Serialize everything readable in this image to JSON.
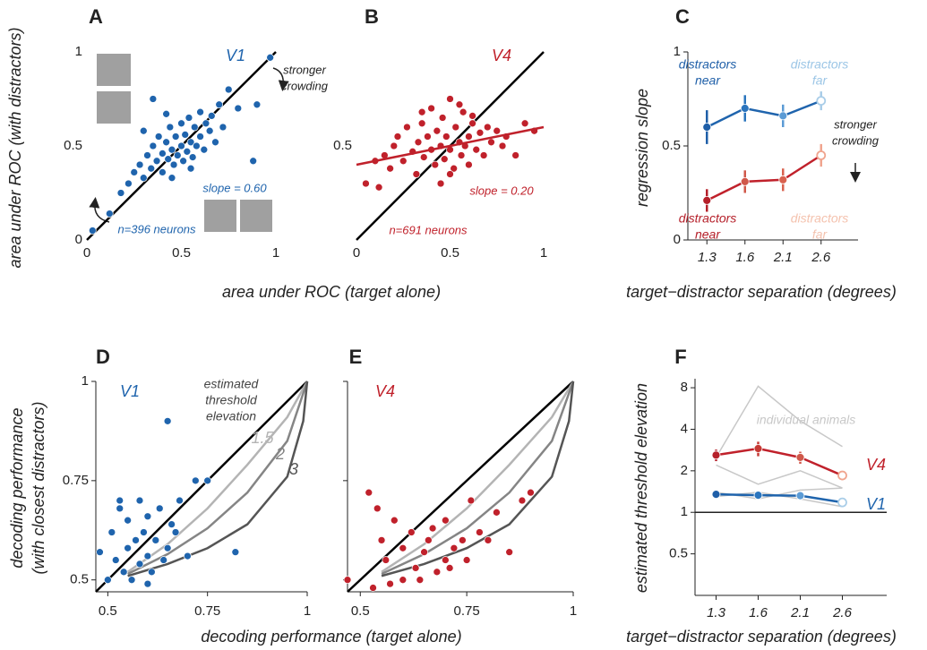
{
  "chart_data": [
    {
      "type": "scatter",
      "panel": "A",
      "label": "V1",
      "color": "#1f64ad",
      "x": [
        0.03,
        0.12,
        0.18,
        0.22,
        0.25,
        0.28,
        0.3,
        0.32,
        0.34,
        0.35,
        0.37,
        0.38,
        0.4,
        0.4,
        0.42,
        0.43,
        0.44,
        0.45,
        0.46,
        0.47,
        0.48,
        0.5,
        0.5,
        0.51,
        0.52,
        0.53,
        0.54,
        0.55,
        0.56,
        0.57,
        0.58,
        0.6,
        0.6,
        0.62,
        0.63,
        0.65,
        0.66,
        0.68,
        0.7,
        0.72,
        0.75,
        0.8,
        0.88,
        0.9,
        0.97,
        0.35,
        0.45,
        0.55,
        0.3,
        0.42
      ],
      "y": [
        0.05,
        0.14,
        0.25,
        0.3,
        0.36,
        0.4,
        0.33,
        0.45,
        0.38,
        0.5,
        0.42,
        0.55,
        0.46,
        0.36,
        0.52,
        0.43,
        0.6,
        0.48,
        0.4,
        0.55,
        0.45,
        0.5,
        0.62,
        0.42,
        0.56,
        0.47,
        0.65,
        0.52,
        0.44,
        0.6,
        0.5,
        0.55,
        0.68,
        0.48,
        0.62,
        0.58,
        0.66,
        0.52,
        0.72,
        0.6,
        0.8,
        0.7,
        0.42,
        0.72,
        0.97,
        0.75,
        0.33,
        0.38,
        0.58,
        0.67
      ],
      "xlim": [
        0,
        1
      ],
      "ylim": [
        0,
        1
      ],
      "xticks": [
        0,
        0.5,
        1
      ],
      "yticks": [
        0,
        0.5,
        1
      ],
      "diagonal": true,
      "xlabel": "area under ROC (target alone)",
      "ylabel": "area under ROC (with distractors)",
      "annotations": [
        "slope = 0.60",
        "n=396 neurons"
      ],
      "note_lines": [
        "stronger",
        "crowding"
      ]
    },
    {
      "type": "scatter",
      "panel": "B",
      "label": "V4",
      "color": "#c0212b",
      "x": [
        0.05,
        0.1,
        0.12,
        0.15,
        0.18,
        0.2,
        0.22,
        0.25,
        0.27,
        0.3,
        0.32,
        0.33,
        0.35,
        0.36,
        0.38,
        0.4,
        0.4,
        0.42,
        0.43,
        0.45,
        0.46,
        0.47,
        0.48,
        0.5,
        0.5,
        0.52,
        0.53,
        0.55,
        0.56,
        0.57,
        0.58,
        0.6,
        0.6,
        0.62,
        0.64,
        0.66,
        0.68,
        0.7,
        0.72,
        0.75,
        0.78,
        0.8,
        0.85,
        0.9,
        0.95,
        0.45,
        0.55,
        0.35,
        0.5,
        0.62
      ],
      "y": [
        0.3,
        0.42,
        0.28,
        0.45,
        0.38,
        0.5,
        0.55,
        0.42,
        0.6,
        0.47,
        0.35,
        0.52,
        0.62,
        0.44,
        0.55,
        0.48,
        0.7,
        0.4,
        0.58,
        0.5,
        0.65,
        0.43,
        0.55,
        0.48,
        0.75,
        0.38,
        0.6,
        0.52,
        0.45,
        0.68,
        0.5,
        0.55,
        0.4,
        0.62,
        0.48,
        0.57,
        0.45,
        0.6,
        0.52,
        0.58,
        0.5,
        0.55,
        0.45,
        0.62,
        0.58,
        0.3,
        0.72,
        0.68,
        0.35,
        0.66
      ],
      "fit": {
        "x": [
          0,
          1
        ],
        "y": [
          0.4,
          0.6
        ]
      },
      "xlim": [
        0,
        1
      ],
      "ylim": [
        0,
        1
      ],
      "xticks": [
        0,
        0.5,
        1
      ],
      "yticks": [
        0.5
      ],
      "diagonal": true,
      "annotations": [
        "slope = 0.20",
        "n=691 neurons"
      ]
    },
    {
      "type": "line",
      "panel": "C",
      "categories": [
        "1.3",
        "1.6",
        "2.1",
        "2.6"
      ],
      "series": [
        {
          "color": "#1f64ad",
          "point_colors": [
            "#1f5fa8",
            "#2a74bd",
            "#5b9bd5",
            "#a9cde8"
          ],
          "values": [
            0.6,
            0.7,
            0.66,
            0.74
          ],
          "errors": [
            0.09,
            0.07,
            0.06,
            0.05
          ]
        },
        {
          "color": "#c0212b",
          "point_colors": [
            "#b5202a",
            "#d0584a",
            "#d9624f",
            "#f0a58f"
          ],
          "values": [
            0.21,
            0.31,
            0.32,
            0.45
          ],
          "errors": [
            0.06,
            0.06,
            0.06,
            0.06
          ]
        }
      ],
      "ylim": [
        0,
        1
      ],
      "yticks": [
        0,
        0.5,
        1
      ],
      "ylabel": "regression slope",
      "xlabel": "target−distractor separation (degrees)",
      "annotations": [
        [
          "distractors",
          "near"
        ],
        [
          "distractors",
          "far"
        ],
        [
          "distractors",
          "near"
        ],
        [
          "distractors",
          "far"
        ]
      ],
      "annotation_colors": [
        "#1f5fa8",
        "#9cc6e6",
        "#b5202a",
        "#f4c2ae"
      ],
      "note_lines": [
        "stronger",
        "crowding"
      ]
    },
    {
      "type": "scatter",
      "panel": "D",
      "label": "V1",
      "color": "#1f64ad",
      "x": [
        0.48,
        0.5,
        0.51,
        0.52,
        0.53,
        0.54,
        0.55,
        0.55,
        0.56,
        0.57,
        0.58,
        0.58,
        0.59,
        0.6,
        0.6,
        0.61,
        0.62,
        0.63,
        0.64,
        0.65,
        0.66,
        0.67,
        0.68,
        0.7,
        0.72,
        0.75,
        0.82,
        0.65,
        0.53,
        0.6
      ],
      "y": [
        0.57,
        0.5,
        0.62,
        0.55,
        0.68,
        0.52,
        0.58,
        0.65,
        0.5,
        0.6,
        0.54,
        0.7,
        0.62,
        0.56,
        0.66,
        0.52,
        0.6,
        0.68,
        0.55,
        0.58,
        0.64,
        0.62,
        0.7,
        0.56,
        0.75,
        0.75,
        0.57,
        0.9,
        0.7,
        0.49
      ],
      "xlim": [
        0.47,
        1
      ],
      "ylim": [
        0.47,
        1
      ],
      "xticks": [
        0.5,
        0.75,
        1
      ],
      "yticks": [
        0.5,
        0.75,
        1
      ],
      "diagonal": true,
      "curves": [
        {
          "label": "1.5",
          "color": "#b4b4b4",
          "x": [
            0.55,
            0.65,
            0.75,
            0.85,
            0.95,
            1
          ],
          "y": [
            0.52,
            0.59,
            0.68,
            0.79,
            0.91,
            1
          ]
        },
        {
          "label": "2",
          "color": "#858585",
          "x": [
            0.55,
            0.65,
            0.75,
            0.85,
            0.95,
            1
          ],
          "y": [
            0.515,
            0.565,
            0.63,
            0.72,
            0.85,
            1
          ]
        },
        {
          "label": "3",
          "color": "#555555",
          "x": [
            0.55,
            0.65,
            0.75,
            0.85,
            0.95,
            0.99,
            1
          ],
          "y": [
            0.51,
            0.54,
            0.58,
            0.64,
            0.76,
            0.9,
            1
          ]
        }
      ],
      "curve_title": [
        "estimated",
        "threshold",
        "elevation"
      ],
      "xlabel": "decoding performance (target alone)",
      "ylabel": [
        "decoding performance",
        "(with closest distractors)"
      ]
    },
    {
      "type": "scatter",
      "panel": "E",
      "label": "V4",
      "color": "#c0212b",
      "x": [
        0.47,
        0.52,
        0.53,
        0.55,
        0.56,
        0.58,
        0.6,
        0.6,
        0.62,
        0.63,
        0.65,
        0.66,
        0.68,
        0.7,
        0.7,
        0.72,
        0.74,
        0.75,
        0.76,
        0.78,
        0.8,
        0.82,
        0.85,
        0.88,
        0.9,
        0.54,
        0.64,
        0.57,
        0.71,
        0.67
      ],
      "y": [
        0.5,
        0.72,
        0.48,
        0.6,
        0.55,
        0.65,
        0.5,
        0.58,
        0.62,
        0.53,
        0.57,
        0.6,
        0.52,
        0.55,
        0.65,
        0.58,
        0.6,
        0.55,
        0.7,
        0.62,
        0.6,
        0.67,
        0.57,
        0.7,
        0.72,
        0.68,
        0.5,
        0.49,
        0.53,
        0.63
      ],
      "xlim": [
        0.47,
        1
      ],
      "ylim": [
        0.47,
        1
      ],
      "xticks": [
        0.5,
        0.75,
        1
      ],
      "yticks": [
        0.5,
        0.75,
        1
      ],
      "diagonal": true,
      "curves": [
        {
          "color": "#b4b4b4",
          "x": [
            0.55,
            0.65,
            0.75,
            0.85,
            0.95,
            1
          ],
          "y": [
            0.52,
            0.59,
            0.68,
            0.79,
            0.91,
            1
          ]
        },
        {
          "color": "#858585",
          "x": [
            0.55,
            0.65,
            0.75,
            0.85,
            0.95,
            1
          ],
          "y": [
            0.515,
            0.565,
            0.63,
            0.72,
            0.85,
            1
          ]
        },
        {
          "color": "#555555",
          "x": [
            0.55,
            0.65,
            0.75,
            0.85,
            0.95,
            0.99,
            1
          ],
          "y": [
            0.51,
            0.54,
            0.58,
            0.64,
            0.76,
            0.9,
            1
          ]
        }
      ]
    },
    {
      "type": "line",
      "panel": "F",
      "log_y": true,
      "categories": [
        "1.3",
        "1.6",
        "2.1",
        "2.6"
      ],
      "series": [
        {
          "name": "V4",
          "color": "#c0212b",
          "point_colors": [
            "#b5202a",
            "#c63a35",
            "#d0584a",
            "#f0a58f"
          ],
          "values": [
            2.6,
            2.9,
            2.5,
            1.85
          ],
          "errors": [
            0.25,
            0.35,
            0.25,
            0.1
          ]
        },
        {
          "name": "V1",
          "color": "#1f64ad",
          "point_colors": [
            "#1f5fa8",
            "#2a74bd",
            "#5b9bd5",
            "#a9cde8"
          ],
          "values": [
            1.35,
            1.33,
            1.32,
            1.18
          ],
          "errors": [
            0.06,
            0.06,
            0.05,
            0.03
          ]
        }
      ],
      "animal_series": [
        {
          "values": [
            2.5,
            8.2,
            4.6,
            3.0
          ]
        },
        {
          "values": [
            2.2,
            1.6,
            2.0,
            1.5
          ]
        },
        {
          "values": [
            1.4,
            1.25,
            1.45,
            1.5
          ]
        },
        {
          "values": [
            1.3,
            1.4,
            1.25,
            1.1
          ]
        }
      ],
      "animal_color": "#c8c8c8",
      "annotations": [
        "individual animals"
      ],
      "reference": 1,
      "ylim": [
        0.25,
        9.3
      ],
      "yticks": [
        0.5,
        1,
        2,
        4,
        8
      ],
      "ylabel": "estimated threshold elevation",
      "xlabel": "target−distractor separation (degrees)"
    }
  ]
}
